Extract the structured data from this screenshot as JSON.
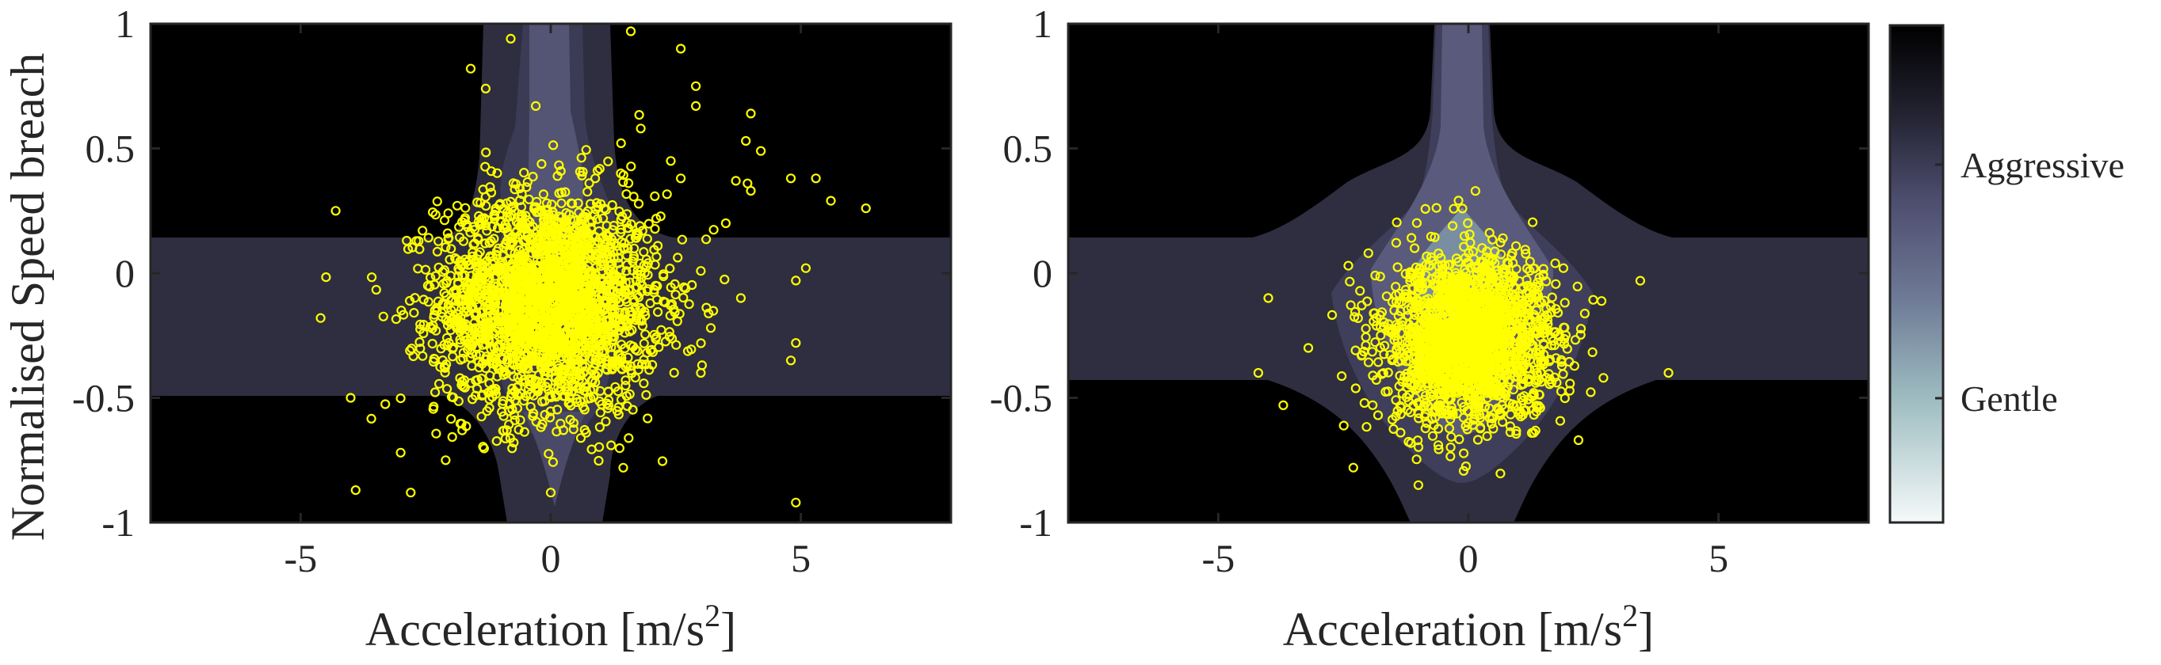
{
  "chart_data": [
    {
      "type": "scatter",
      "panel": "left",
      "xlabel": "Acceleration [m/s",
      "xlabel_superscript": "2",
      "xlabel_suffix": "]",
      "ylabel": "Normalised Speed breach",
      "xlim": [
        -8,
        8
      ],
      "ylim": [
        -1,
        1
      ],
      "xticks": [
        -5,
        0,
        5
      ],
      "xtick_labels": [
        "-5",
        "0",
        "5"
      ],
      "yticks": [
        1,
        0.5,
        0,
        -0.5,
        -1
      ],
      "ytick_labels": [
        "1",
        "0.5",
        "0",
        "-0.5",
        "-1"
      ],
      "grid": false,
      "background_contours": "cross-shaped density regions centered near (0, -0.15)",
      "marker_color": "#ffff00",
      "points_description": "dense cloud centred around x≈0, y≈-0.15 with outliers extending to x≈-4..6, y≈-0.9..1",
      "cluster": {
        "cx": -0.05,
        "cy": -0.12,
        "sx": 1.1,
        "sy": 0.22,
        "n": 2400
      },
      "outliers": [
        [
          -4.3,
          0.25
        ],
        [
          -4.6,
          -0.18
        ],
        [
          -3.9,
          -0.87
        ],
        [
          -2.8,
          -0.88
        ],
        [
          -2.1,
          -0.75
        ],
        [
          -1.6,
          0.82
        ],
        [
          -0.8,
          0.94
        ],
        [
          1.6,
          0.97
        ],
        [
          2.6,
          0.9
        ],
        [
          2.9,
          0.67
        ],
        [
          2.9,
          0.75
        ],
        [
          4.0,
          0.64
        ],
        [
          3.9,
          0.53
        ],
        [
          4.2,
          0.49
        ],
        [
          4.8,
          0.38
        ],
        [
          5.3,
          0.38
        ],
        [
          6.3,
          0.26
        ],
        [
          5.6,
          0.29
        ],
        [
          4.0,
          0.33
        ],
        [
          3.7,
          0.37
        ],
        [
          3.5,
          0.2
        ],
        [
          4.9,
          -0.03
        ],
        [
          5.1,
          0.02
        ],
        [
          4.9,
          -0.28
        ],
        [
          4.8,
          -0.35
        ],
        [
          4.9,
          -0.92
        ],
        [
          0.0,
          -0.88
        ],
        [
          -3.0,
          -0.72
        ],
        [
          -4.0,
          -0.5
        ],
        [
          3.0,
          -0.4
        ],
        [
          2.4,
          0.45
        ],
        [
          2.6,
          0.38
        ],
        [
          1.4,
          0.4
        ],
        [
          1.8,
          0.58
        ],
        [
          -0.3,
          0.67
        ],
        [
          -1.3,
          0.74
        ],
        [
          3.8,
          -0.1
        ],
        [
          3.2,
          -0.22
        ]
      ]
    },
    {
      "type": "scatter",
      "panel": "right",
      "xlabel": "Acceleration [m/s",
      "xlabel_superscript": "2",
      "xlabel_suffix": "]",
      "ylabel": "",
      "xlim": [
        -8,
        8
      ],
      "ylim": [
        -1,
        1
      ],
      "xticks": [
        -5,
        0,
        5
      ],
      "xtick_labels": [
        "-5",
        "0",
        "5"
      ],
      "yticks": [
        1,
        0.5,
        0,
        -0.5,
        -1
      ],
      "ytick_labels": [
        "1",
        "0.5",
        "0",
        "-0.5",
        "-1"
      ],
      "grid": false,
      "marker_color": "#ffff00",
      "points_description": "compact cloud centred around x≈0, y≈-0.28, spread x≈-3..3, y≈-0.85..0.15",
      "cluster": {
        "cx": 0.0,
        "cy": -0.27,
        "sx": 0.85,
        "sy": 0.17,
        "n": 1900
      },
      "outliers": [
        [
          -4.0,
          -0.1
        ],
        [
          -4.2,
          -0.4
        ],
        [
          -3.7,
          -0.53
        ],
        [
          4.0,
          -0.4
        ],
        [
          2.7,
          -0.42
        ],
        [
          -2.3,
          -0.78
        ],
        [
          -1.0,
          -0.85
        ],
        [
          2.2,
          -0.67
        ],
        [
          1.9,
          0.02
        ],
        [
          -2.0,
          0.08
        ],
        [
          -2.4,
          0.03
        ],
        [
          -3.2,
          -0.3
        ]
      ]
    }
  ],
  "colorbar": {
    "labels": [
      "Aggressive",
      "Gentle"
    ],
    "label_values": [
      0.72,
      0.25
    ],
    "colors_top_to_bottom": [
      "#000000",
      "#2d2d3f",
      "#5f5f86",
      "#7c8ba0",
      "#a7c4c6",
      "#f3f8f8"
    ]
  },
  "colors": {
    "region_outer": "#000000",
    "region_cross": "#2e2e40",
    "region_mid": "#3f3f5a",
    "region_core": "#5a5a7c",
    "region_core_light": "#6c7a94",
    "points": "#ffff00"
  }
}
